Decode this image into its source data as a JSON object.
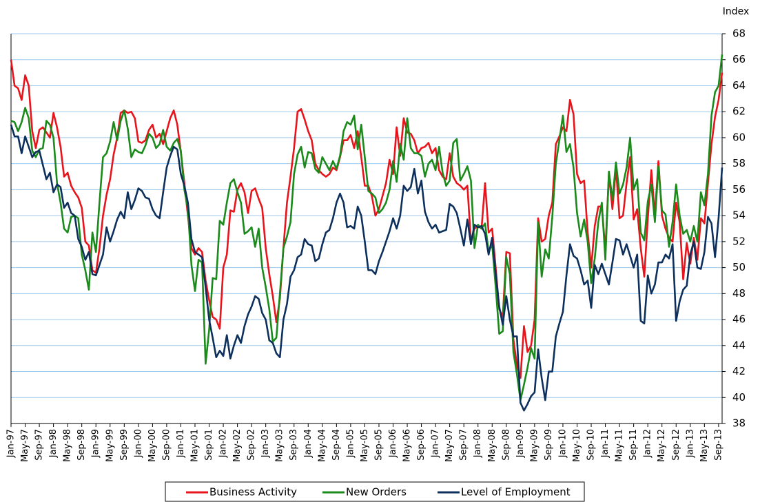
{
  "chart_data": {
    "type": "line",
    "y_axis_label": "Index",
    "ylim": [
      38,
      68
    ],
    "yticks": [
      38,
      40,
      42,
      44,
      46,
      48,
      50,
      52,
      54,
      56,
      58,
      60,
      62,
      64,
      66,
      68
    ],
    "grid": true,
    "legend": "bottom",
    "categories": [
      "Jan-97",
      null,
      null,
      null,
      "May-97",
      null,
      null,
      null,
      "Sep-97",
      null,
      null,
      null,
      "Jan-98",
      null,
      null,
      null,
      "May-98",
      null,
      null,
      null,
      "Sep-98",
      null,
      null,
      null,
      "Jan-99",
      null,
      null,
      null,
      "May-99",
      null,
      null,
      null,
      "Sep-99",
      null,
      null,
      null,
      "Jan-00",
      null,
      null,
      null,
      "May-00",
      null,
      null,
      null,
      "Sep-00",
      null,
      null,
      null,
      "Jan-01",
      null,
      null,
      null,
      "May-01",
      null,
      null,
      null,
      "Sep-01",
      null,
      null,
      null,
      "Jan-02",
      null,
      null,
      null,
      "May-02",
      null,
      null,
      null,
      "Sep-02",
      null,
      null,
      null,
      "Jan-03",
      null,
      null,
      null,
      "May-03",
      null,
      null,
      null,
      "Sep-03",
      null,
      null,
      null,
      "Jan-04",
      null,
      null,
      null,
      "May-04",
      null,
      null,
      null,
      "Sep-04",
      null,
      null,
      null,
      "Jan-05",
      null,
      null,
      null,
      "May-05",
      null,
      null,
      null,
      "Sep-05",
      null,
      null,
      null,
      "Jan-06",
      null,
      null,
      null,
      "May-06",
      null,
      null,
      null,
      "Sep-06",
      null,
      null,
      null,
      "Jan-07",
      null,
      null,
      null,
      "May-07",
      null,
      null,
      null,
      "Sep-07",
      null,
      null,
      null,
      "Jan-08",
      null,
      null,
      null,
      "May-08",
      null,
      null,
      null,
      "Sep-08",
      null,
      null,
      null,
      "Jan-09",
      null,
      null,
      null,
      "May-09",
      null,
      null,
      null,
      "Sep-09",
      null,
      null,
      null,
      "Jan-10",
      null,
      null,
      null,
      "May-10",
      null,
      null,
      null,
      "Sep-10",
      null,
      null,
      null,
      "Jan-11",
      null,
      null,
      null,
      "May-11",
      null,
      null,
      null,
      "Sep-11",
      null,
      null,
      null,
      "Jan-12",
      null,
      null,
      null,
      "May-12",
      null,
      null,
      null,
      "Sep-12",
      null,
      null,
      null,
      "Jan-13",
      null,
      null,
      null,
      "May-13",
      null,
      null,
      null,
      "Sep-13",
      null
    ],
    "series": [
      {
        "name": "Business Activity",
        "color": "#e8141c",
        "values": [
          66.0,
          64.0,
          63.8,
          62.9,
          64.8,
          64.0,
          60.5,
          59.2,
          60.6,
          60.8,
          60.4,
          60.0,
          61.9,
          60.8,
          59.3,
          57.0,
          57.3,
          56.3,
          55.8,
          55.4,
          54.6,
          52.0,
          51.7,
          49.8,
          49.6,
          51.5,
          54.0,
          55.6,
          56.8,
          58.7,
          60.0,
          61.9,
          62.1,
          61.9,
          62.0,
          61.5,
          59.7,
          59.6,
          59.8,
          60.6,
          61.0,
          60.0,
          60.3,
          59.5,
          60.5,
          61.5,
          62.1,
          61.0,
          58.9,
          56.5,
          54.0,
          51.5,
          51.0,
          51.5,
          51.2,
          49.0,
          47.5,
          46.2,
          46.0,
          45.3,
          50.0,
          51.0,
          54.4,
          54.3,
          56.0,
          56.5,
          55.8,
          54.2,
          55.9,
          56.1,
          55.3,
          54.6,
          51.5,
          49.5,
          47.8,
          45.8,
          47.6,
          51.5,
          55.0,
          57.0,
          59.2,
          62.0,
          62.2,
          61.4,
          60.5,
          59.8,
          58.0,
          57.5,
          57.2,
          57.0,
          57.2,
          57.7,
          57.5,
          58.5,
          59.8,
          59.8,
          60.2,
          59.2,
          60.5,
          58.5,
          56.3,
          56.3,
          55.5,
          54.0,
          54.5,
          55.5,
          56.5,
          58.3,
          57.2,
          60.8,
          58.6,
          61.5,
          60.4,
          60.3,
          59.8,
          58.8,
          59.2,
          59.3,
          59.6,
          58.8,
          59.2,
          57.5,
          57.0,
          56.8,
          58.8,
          57.0,
          56.5,
          56.3,
          56.0,
          56.3,
          52.0,
          53.0,
          53.2,
          53.0,
          56.5,
          52.7,
          53.0,
          50.0,
          46.8,
          46.2,
          51.2,
          51.1,
          44.5,
          42.5,
          41.5,
          45.5,
          43.5,
          44.0,
          46.0,
          53.8,
          52.0,
          52.2,
          54.0,
          55.0,
          59.5,
          60.1,
          60.8,
          60.5,
          62.9,
          61.8,
          57.2,
          56.5,
          56.7,
          52.7,
          50.0,
          53.2,
          54.7,
          54.7,
          51.3,
          57.2,
          54.5,
          57.7,
          53.8,
          54.0,
          56.5,
          58.5,
          53.7,
          54.5,
          51.5,
          49.3,
          53.8,
          57.5,
          54.0,
          58.2,
          54.0,
          53.0,
          52.3,
          52.0,
          55.0,
          53.5,
          49.1,
          51.9,
          50.3,
          52.3,
          50.6,
          53.8,
          53.4,
          56.5,
          59.5,
          61.6,
          62.9,
          65.0
        ]
      },
      {
        "name": "New Orders",
        "color": "#1a8a1a",
        "values": [
          61.3,
          61.2,
          60.5,
          61.2,
          62.3,
          61.5,
          59.0,
          58.5,
          59.1,
          59.2,
          61.3,
          61.0,
          60.0,
          56.5,
          55.0,
          53.0,
          52.7,
          53.9,
          54.0,
          53.8,
          51.0,
          49.8,
          48.3,
          52.7,
          51.2,
          55.0,
          58.5,
          58.8,
          59.7,
          61.2,
          59.8,
          61.3,
          62.1,
          60.7,
          58.5,
          59.1,
          58.9,
          58.8,
          59.4,
          60.3,
          60.0,
          59.2,
          59.5,
          60.6,
          59.3,
          59.0,
          59.6,
          59.9,
          59.0,
          56.0,
          54.5,
          50.2,
          48.2,
          50.6,
          50.4,
          42.6,
          45.2,
          49.2,
          49.1,
          53.6,
          53.3,
          55.0,
          56.5,
          56.8,
          55.8,
          55.0,
          52.6,
          52.8,
          53.1,
          51.6,
          53.0,
          50.0,
          48.5,
          46.8,
          44.3,
          44.6,
          48.0,
          51.5,
          52.4,
          53.5,
          57.2,
          58.7,
          59.3,
          57.7,
          58.9,
          58.8,
          57.6,
          57.3,
          58.5,
          58.0,
          57.5,
          58.2,
          57.6,
          58.6,
          60.5,
          61.2,
          61.0,
          61.7,
          59.1,
          61.0,
          58.5,
          55.9,
          55.7,
          55.4,
          54.2,
          54.5,
          55.0,
          56.0,
          58.2,
          56.6,
          59.5,
          58.3,
          61.5,
          59.2,
          58.8,
          58.8,
          58.6,
          57.0,
          58.0,
          58.3,
          57.5,
          59.3,
          57.3,
          56.3,
          56.7,
          59.6,
          59.9,
          56.7,
          57.2,
          57.8,
          56.7,
          51.5,
          53.3,
          53.0,
          53.4,
          51.2,
          51.8,
          48.5,
          44.9,
          45.1,
          50.8,
          49.5,
          43.5,
          41.8,
          39.8,
          41.0,
          42.3,
          43.8,
          43.0,
          53.5,
          49.3,
          51.4,
          50.7,
          53.9,
          58.0,
          59.8,
          61.7,
          58.9,
          59.5,
          57.7,
          54.2,
          52.4,
          53.7,
          52.0,
          48.8,
          50.7,
          53.5,
          55.0,
          50.6,
          57.4,
          55.2,
          58.1,
          55.7,
          56.4,
          57.7,
          60.0,
          56.0,
          56.8,
          52.7,
          52.1,
          55.1,
          56.4,
          53.5,
          57.8,
          54.4,
          54.1,
          51.6,
          53.5,
          56.4,
          54.0,
          52.6,
          52.9,
          52.0,
          53.2,
          52.0,
          55.8,
          54.8,
          57.2,
          61.7,
          63.5,
          64.0,
          66.4
        ]
      },
      {
        "name": "Level of Employment",
        "color": "#0d2f5c",
        "values": [
          61.0,
          60.1,
          60.1,
          58.8,
          60.1,
          59.3,
          58.5,
          58.9,
          59.0,
          57.9,
          56.8,
          57.3,
          55.8,
          56.4,
          56.2,
          54.6,
          55.0,
          54.2,
          54.0,
          52.2,
          51.6,
          50.6,
          51.2,
          49.5,
          49.4,
          50.2,
          51.0,
          53.1,
          52.0,
          52.8,
          53.7,
          54.3,
          53.8,
          55.8,
          54.5,
          55.2,
          56.1,
          55.9,
          55.4,
          55.3,
          54.5,
          54.0,
          53.8,
          55.8,
          57.7,
          58.6,
          59.3,
          59.1,
          57.2,
          56.3,
          55.0,
          52.2,
          51.2,
          51.0,
          50.8,
          48.5,
          46.0,
          44.6,
          43.1,
          43.6,
          43.2,
          44.8,
          43.0,
          44.0,
          44.8,
          44.2,
          45.5,
          46.4,
          47.0,
          47.8,
          47.6,
          46.5,
          46.0,
          44.4,
          44.2,
          43.4,
          43.1,
          46.0,
          47.2,
          49.3,
          49.8,
          50.8,
          51.0,
          52.2,
          51.8,
          51.7,
          50.5,
          50.7,
          51.8,
          52.7,
          52.9,
          53.8,
          55.0,
          55.7,
          55.0,
          53.1,
          53.2,
          53.0,
          54.7,
          54.0,
          52.0,
          49.8,
          49.8,
          49.5,
          50.5,
          51.2,
          52.0,
          52.8,
          53.8,
          53.0,
          54.0,
          56.3,
          55.9,
          56.2,
          57.6,
          55.7,
          56.7,
          54.3,
          53.5,
          53.0,
          53.3,
          52.7,
          52.8,
          52.9,
          54.9,
          54.7,
          54.2,
          53.0,
          51.7,
          53.7,
          51.8,
          53.3,
          53.1,
          53.2,
          52.6,
          51.0,
          52.3,
          49.5,
          47.0,
          45.6,
          47.8,
          46.0,
          44.7,
          44.7,
          39.6,
          39.0,
          39.5,
          40.1,
          40.4,
          43.7,
          41.5,
          39.8,
          42.0,
          42.0,
          44.7,
          45.7,
          46.6,
          49.4,
          51.8,
          50.9,
          50.7,
          49.8,
          48.7,
          49.0,
          46.9,
          50.2,
          49.5,
          50.3,
          49.5,
          48.7,
          50.4,
          52.2,
          52.1,
          51.0,
          51.8,
          50.9,
          50.0,
          51.0,
          45.9,
          45.7,
          49.4,
          48.0,
          48.7,
          50.4,
          50.4,
          51.0,
          50.7,
          51.8,
          45.9,
          47.4,
          48.3,
          48.6,
          51.0,
          52.0,
          50.0,
          49.9,
          51.2,
          53.9,
          53.4,
          50.8,
          53.8,
          57.7
        ]
      }
    ]
  }
}
